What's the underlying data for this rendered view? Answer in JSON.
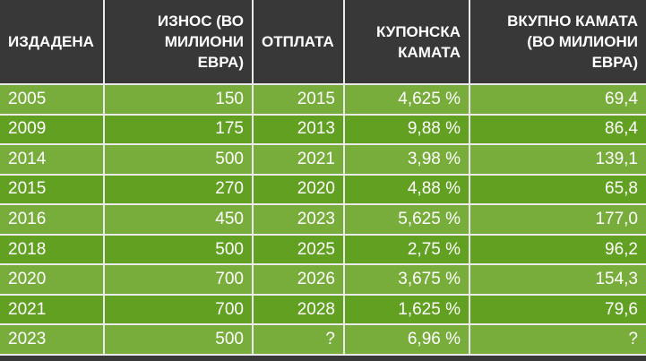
{
  "colors": {
    "header_bg": "#383838",
    "footer_bg": "#383838",
    "row_light": "#78AD3C",
    "row_dark": "#62A021",
    "divider": "#eaeaea",
    "text": "#ffffff"
  },
  "chart_data": {
    "type": "table",
    "columns": [
      {
        "label": "ИЗДАДЕНА",
        "lines": [
          "ИЗДАДЕНА"
        ],
        "header_align": "left",
        "cell_align": "left"
      },
      {
        "label": "ИЗНОС (ВО МИЛИОНИ ЕВРА)",
        "lines": [
          "ИЗНОС (ВО",
          "МИЛИОНИ",
          "ЕВРА)"
        ],
        "header_align": "right",
        "cell_align": "right"
      },
      {
        "label": "ОТПЛАТА",
        "lines": [
          "ОТПЛАТА"
        ],
        "header_align": "left",
        "cell_align": "right"
      },
      {
        "label": "КУПОНСКА КАМАТА",
        "lines": [
          "КУПОНСКА",
          "КАМАТА"
        ],
        "header_align": "right",
        "cell_align": "right"
      },
      {
        "label": "ВКУПНО КАМАТА (ВО МИЛИОНИ ЕВРА)",
        "lines": [
          "ВКУПНО КАМАТА",
          "(ВО МИЛИОНИ",
          "ЕВРА)"
        ],
        "header_align": "right",
        "cell_align": "right"
      }
    ],
    "rows": [
      [
        "2005",
        "150",
        "2015",
        "4,625 %",
        "69,4"
      ],
      [
        "2009",
        "175",
        "2013",
        "9,88 %",
        "86,4"
      ],
      [
        "2014",
        "500",
        "2021",
        "3,98 %",
        "139,1"
      ],
      [
        "2015",
        "270",
        "2020",
        "4,88 %",
        "65,8"
      ],
      [
        "2016",
        "450",
        "2023",
        "5,625 %",
        "177,0"
      ],
      [
        "2018",
        "500",
        "2025",
        "2,75 %",
        "96,2"
      ],
      [
        "2020",
        "700",
        "2026",
        "3,675 %",
        "154,3"
      ],
      [
        "2021",
        "700",
        "2028",
        "1,625 %",
        "79,6"
      ],
      [
        "2023",
        "500",
        "?",
        "6,96 %",
        "?"
      ]
    ]
  }
}
